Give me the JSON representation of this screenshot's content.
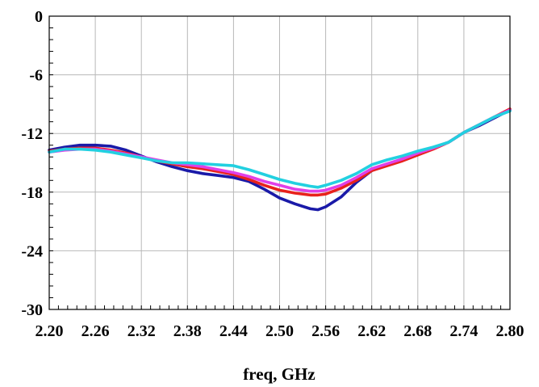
{
  "chart_data": {
    "type": "line",
    "title": "",
    "xlabel": "freq, GHz",
    "ylabel": "",
    "xlim": [
      2.2,
      2.8
    ],
    "ylim": [
      -30,
      0
    ],
    "x_ticks": [
      "2.20",
      "2.26",
      "2.32",
      "2.38",
      "2.44",
      "2.50",
      "2.56",
      "2.62",
      "2.68",
      "2.74",
      "2.80"
    ],
    "y_ticks": [
      "0",
      "-6",
      "-12",
      "-18",
      "-24",
      "-30"
    ],
    "grid": true,
    "legend": "none",
    "series": [
      {
        "color": "#1a1aa8",
        "x": [
          2.2,
          2.22,
          2.24,
          2.26,
          2.28,
          2.3,
          2.32,
          2.34,
          2.36,
          2.38,
          2.4,
          2.42,
          2.44,
          2.46,
          2.48,
          2.5,
          2.52,
          2.54,
          2.55,
          2.56,
          2.58,
          2.6,
          2.62,
          2.64,
          2.66,
          2.68,
          2.7,
          2.72,
          2.74,
          2.76,
          2.78,
          2.8
        ],
        "y": [
          -13.7,
          -13.4,
          -13.2,
          -13.2,
          -13.3,
          -13.7,
          -14.3,
          -14.9,
          -15.4,
          -15.8,
          -16.1,
          -16.3,
          -16.5,
          -16.9,
          -17.7,
          -18.6,
          -19.2,
          -19.7,
          -19.8,
          -19.5,
          -18.5,
          -17.0,
          -15.8,
          -15.2,
          -14.6,
          -14.1,
          -13.5,
          -12.9,
          -11.9,
          -11.2,
          -10.4,
          -9.6
        ]
      },
      {
        "color": "#e8221c",
        "x": [
          2.2,
          2.22,
          2.24,
          2.26,
          2.28,
          2.3,
          2.32,
          2.34,
          2.36,
          2.38,
          2.4,
          2.42,
          2.44,
          2.46,
          2.48,
          2.5,
          2.52,
          2.54,
          2.55,
          2.56,
          2.58,
          2.6,
          2.62,
          2.64,
          2.66,
          2.68,
          2.7,
          2.72,
          2.74,
          2.76,
          2.78,
          2.8
        ],
        "y": [
          -13.8,
          -13.6,
          -13.5,
          -13.5,
          -13.7,
          -14.0,
          -14.4,
          -14.8,
          -15.1,
          -15.4,
          -15.6,
          -15.9,
          -16.2,
          -16.7,
          -17.3,
          -17.8,
          -18.1,
          -18.3,
          -18.3,
          -18.2,
          -17.6,
          -16.8,
          -15.8,
          -15.3,
          -14.8,
          -14.2,
          -13.6,
          -12.9,
          -11.9,
          -11.1,
          -10.3,
          -9.5
        ]
      },
      {
        "color": "#e040e8",
        "x": [
          2.2,
          2.22,
          2.24,
          2.26,
          2.28,
          2.3,
          2.32,
          2.34,
          2.36,
          2.38,
          2.4,
          2.42,
          2.44,
          2.46,
          2.48,
          2.5,
          2.52,
          2.54,
          2.55,
          2.56,
          2.58,
          2.6,
          2.62,
          2.64,
          2.66,
          2.68,
          2.7,
          2.72,
          2.74,
          2.76,
          2.78,
          2.8
        ],
        "y": [
          -13.9,
          -13.7,
          -13.6,
          -13.6,
          -13.8,
          -14.1,
          -14.4,
          -14.7,
          -15.0,
          -15.2,
          -15.4,
          -15.7,
          -16.0,
          -16.4,
          -16.9,
          -17.3,
          -17.7,
          -17.9,
          -17.9,
          -17.8,
          -17.3,
          -16.5,
          -15.6,
          -15.1,
          -14.6,
          -14.0,
          -13.5,
          -12.9,
          -11.9,
          -11.1,
          -10.3,
          -9.6
        ]
      },
      {
        "color": "#22d0e0",
        "x": [
          2.2,
          2.22,
          2.24,
          2.26,
          2.28,
          2.3,
          2.32,
          2.34,
          2.36,
          2.38,
          2.4,
          2.42,
          2.44,
          2.46,
          2.48,
          2.5,
          2.52,
          2.54,
          2.55,
          2.56,
          2.58,
          2.6,
          2.62,
          2.64,
          2.66,
          2.68,
          2.7,
          2.72,
          2.74,
          2.76,
          2.78,
          2.8
        ],
        "y": [
          -13.9,
          -13.6,
          -13.6,
          -13.7,
          -13.9,
          -14.2,
          -14.5,
          -14.8,
          -15.0,
          -15.0,
          -15.1,
          -15.2,
          -15.3,
          -15.7,
          -16.2,
          -16.7,
          -17.1,
          -17.4,
          -17.5,
          -17.3,
          -16.8,
          -16.1,
          -15.2,
          -14.7,
          -14.3,
          -13.8,
          -13.4,
          -12.9,
          -11.9,
          -11.1,
          -10.3,
          -9.7
        ]
      }
    ]
  }
}
